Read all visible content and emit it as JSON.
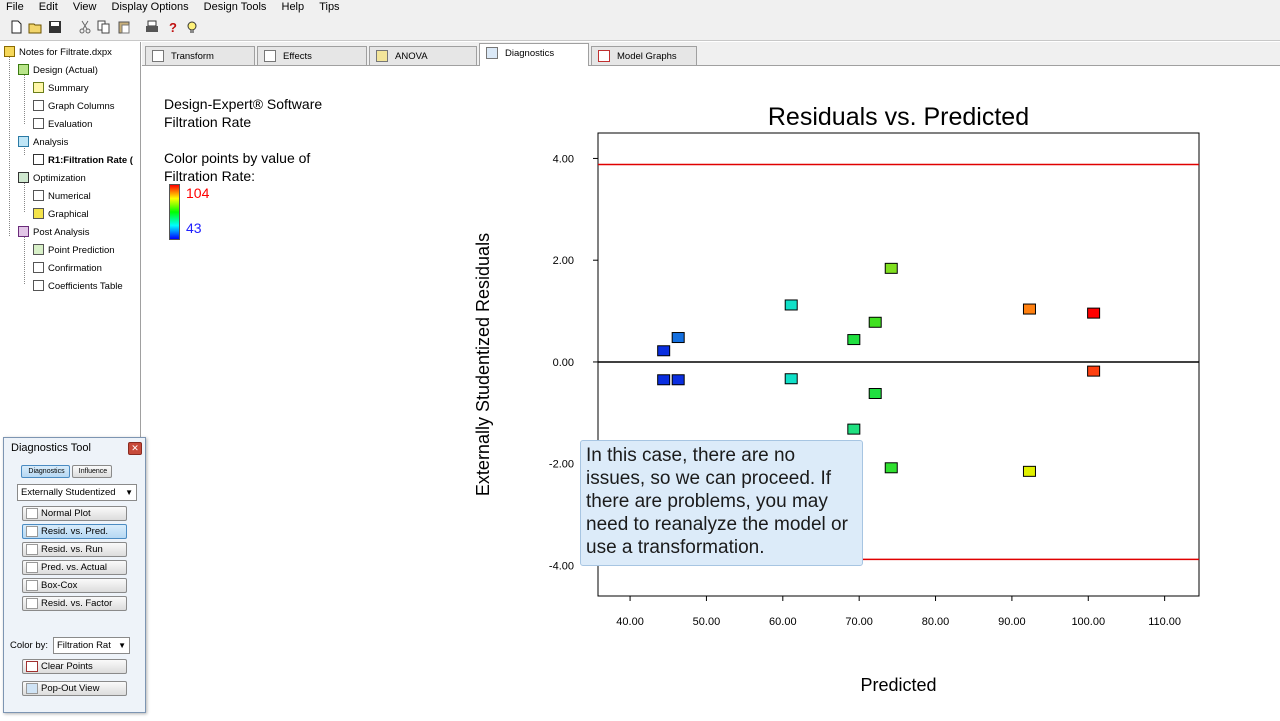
{
  "menu": [
    "File",
    "Edit",
    "View",
    "Display Options",
    "Design Tools",
    "Help",
    "Tips"
  ],
  "toolbar_icons": [
    "new-file-icon",
    "open-folder-icon",
    "save-icon",
    "cut-icon",
    "copy-icon",
    "paste-icon",
    "print-icon",
    "help-icon",
    "tip-bulb-icon"
  ],
  "tree": {
    "root": "Notes for Filtrate.dxpx",
    "design": "Design (Actual)",
    "summary": "Summary",
    "graph_columns": "Graph Columns",
    "evaluation": "Evaluation",
    "analysis": "Analysis",
    "r1": "R1:Filtration Rate (",
    "optimization": "Optimization",
    "numerical": "Numerical",
    "graphical": "Graphical",
    "post_analysis": "Post Analysis",
    "point_prediction": "Point Prediction",
    "confirmation": "Confirmation",
    "coefficients": "Coefficients Table"
  },
  "tabs": [
    "Transform",
    "Effects",
    "ANOVA",
    "Diagnostics",
    "Model Graphs"
  ],
  "active_tab": "Diagnostics",
  "legend": {
    "line1": "Design-Expert® Software",
    "line2": "Filtration Rate",
    "line3": "Color points by value of",
    "line4": "Filtration Rate:",
    "max": "104",
    "min": "43",
    "max_color": "#ff0000",
    "min_color": "#2020ff"
  },
  "diag_tool": {
    "title": "Diagnostics Tool",
    "tab1": "Diagnostics",
    "tab2": "Influence",
    "residual_type": "Externally Studentized",
    "buttons": [
      "Normal Plot",
      "Resid. vs. Pred.",
      "Resid. vs. Run",
      "Pred. vs. Actual",
      "Box-Cox",
      "Resid. vs. Factor"
    ],
    "selected_button": "Resid. vs. Pred.",
    "color_by_label": "Color by:",
    "color_by_value": "Filtration Rat",
    "clear_points": "Clear Points",
    "popout": "Pop-Out View"
  },
  "callout": "In this case, there are no issues, so we can proceed.  If there are problems, you may need to reanalyze the model or use a transformation.",
  "chart_data": {
    "type": "scatter",
    "title": "Residuals vs. Predicted",
    "xlabel": "Predicted",
    "ylabel": "Externally Studentized Residuals",
    "xlim": [
      35.8,
      114.5
    ],
    "ylim": [
      -4.6,
      4.5
    ],
    "xticks": [
      "40.00",
      "50.00",
      "60.00",
      "70.00",
      "80.00",
      "90.00",
      "100.00",
      "110.00"
    ],
    "yticks": [
      "4.00",
      "2.00",
      "0.00",
      "-2.00",
      "-4.00"
    ],
    "limit_lines": [
      3.88,
      -3.88
    ],
    "limit_color": "#e00000",
    "zero_line": 0,
    "points": [
      {
        "x": 44.4,
        "y": 0.22,
        "color": "#0a2ee0"
      },
      {
        "x": 44.4,
        "y": -0.35,
        "color": "#0a2ee0"
      },
      {
        "x": 46.3,
        "y": 0.48,
        "color": "#1470e0"
      },
      {
        "x": 46.3,
        "y": -0.35,
        "color": "#0a2ee0"
      },
      {
        "x": 61.1,
        "y": 1.12,
        "color": "#10e0c8"
      },
      {
        "x": 61.1,
        "y": -0.33,
        "color": "#10e0c8"
      },
      {
        "x": 69.3,
        "y": 0.44,
        "color": "#20e040"
      },
      {
        "x": 69.3,
        "y": -1.32,
        "color": "#20e080"
      },
      {
        "x": 72.1,
        "y": 0.78,
        "color": "#40e020"
      },
      {
        "x": 72.1,
        "y": -0.62,
        "color": "#20e040"
      },
      {
        "x": 74.2,
        "y": 1.84,
        "color": "#80e020"
      },
      {
        "x": 74.2,
        "y": -2.08,
        "color": "#30e030"
      },
      {
        "x": 92.3,
        "y": 1.04,
        "color": "#ff8010"
      },
      {
        "x": 92.3,
        "y": -2.15,
        "color": "#e0f000"
      },
      {
        "x": 100.7,
        "y": 0.96,
        "color": "#ff0000"
      },
      {
        "x": 100.7,
        "y": -0.18,
        "color": "#ff4010"
      }
    ]
  }
}
